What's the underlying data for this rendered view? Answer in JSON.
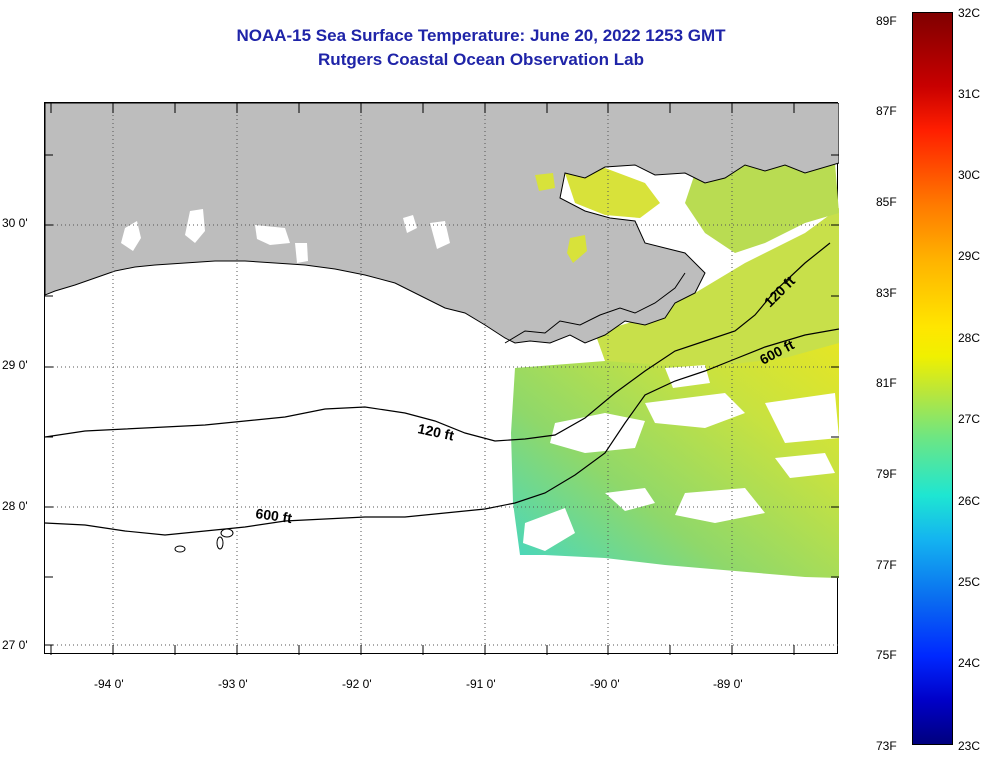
{
  "title": {
    "line1": "NOAA-15 Sea Surface Temperature:  June 20, 2022 1253 GMT",
    "line2": "Rutgers Coastal Ocean Observation Lab"
  },
  "axes": {
    "lat_labels": [
      "30 0'",
      "29 0'",
      "28 0'",
      "27 0'"
    ],
    "lon_labels": [
      "-94 0'",
      "-93 0'",
      "-92 0'",
      "-91 0'",
      "-90 0'",
      "-89 0'"
    ]
  },
  "contours": {
    "labels": [
      "120 ft",
      "600 ft",
      "120 ft",
      "600 ft"
    ]
  },
  "colorbar": {
    "fahrenheit": [
      "89F",
      "87F",
      "85F",
      "83F",
      "81F",
      "79F",
      "77F",
      "75F",
      "73F"
    ],
    "celsius": [
      "32C",
      "31C",
      "30C",
      "29C",
      "28C",
      "27C",
      "26C",
      "25C",
      "24C",
      "23C"
    ],
    "top_color": "#800000",
    "bottom_color": "#00007e"
  },
  "colors": {
    "title": "#1f24a8",
    "land": "#bdbdbd",
    "sst_warm": "#e8e622",
    "sst_mid": "#9bd85a",
    "sst_cool": "#3fd7c8"
  }
}
